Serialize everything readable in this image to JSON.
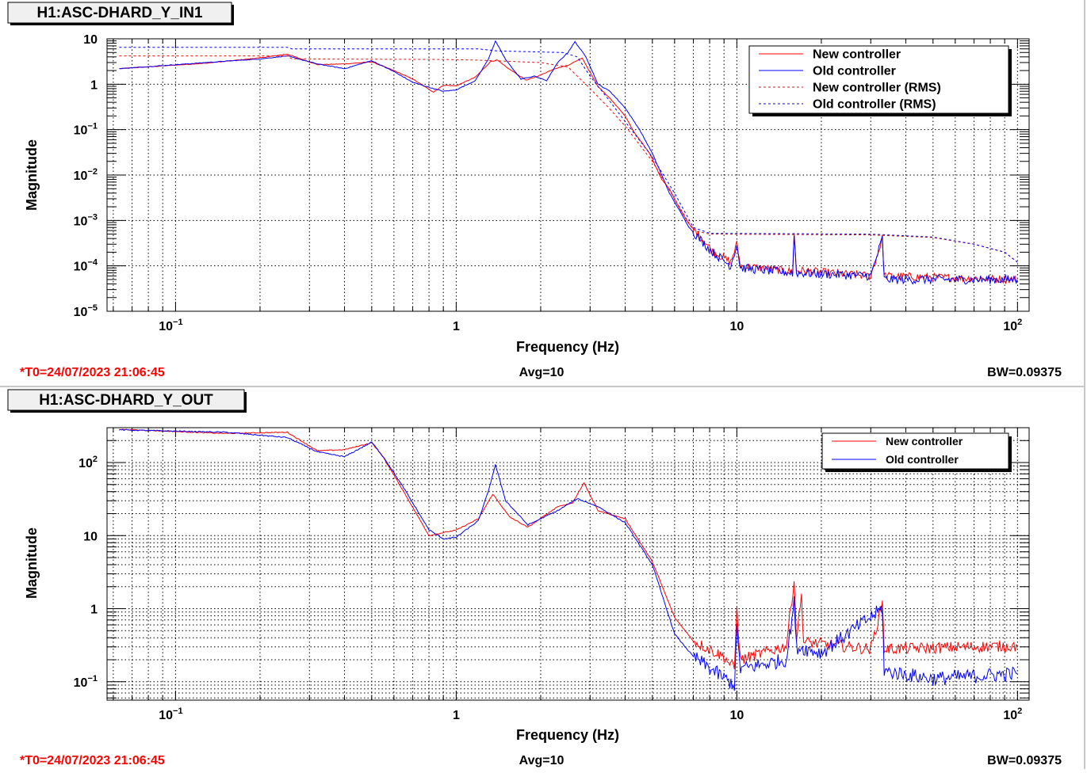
{
  "footer_info": {
    "t0": "*T0=24/07/2023 21:06:45",
    "avg": "Avg=10",
    "bw": "BW=0.09375",
    "t0_color": "#ff0000"
  },
  "chart_data": [
    {
      "type": "line",
      "title": "H1:ASC-DHARD_Y_IN1",
      "xlabel": "Frequency (Hz)",
      "ylabel": "Magnitude",
      "xscale": "log",
      "yscale": "log",
      "xlim": [
        0.057,
        110
      ],
      "ylim": [
        1e-05,
        10
      ],
      "grid": true,
      "legend_position": "top-right",
      "xticks": [
        {
          "base": "10",
          "exp": "−1",
          "v": 0.1
        },
        {
          "base": "1",
          "exp": "",
          "v": 1
        },
        {
          "base": "10",
          "exp": "",
          "v": 10
        },
        {
          "base": "10",
          "exp": "2",
          "v": 100
        }
      ],
      "yticks": [
        {
          "base": "10",
          "exp": "",
          "v": 10
        },
        {
          "base": "1",
          "exp": "",
          "v": 1
        },
        {
          "base": "10",
          "exp": "−1",
          "v": 0.1
        },
        {
          "base": "10",
          "exp": "−2",
          "v": 0.01
        },
        {
          "base": "10",
          "exp": "−3",
          "v": 0.001
        },
        {
          "base": "10",
          "exp": "−4",
          "v": 0.0001
        },
        {
          "base": "10",
          "exp": "−5",
          "v": 1e-05
        }
      ],
      "series": [
        {
          "name": "New controller",
          "color": "#ff0000",
          "dash": false,
          "noise_dex": 0.09,
          "points": [
            [
              0.063,
              2.2
            ],
            [
              0.128,
              2.9
            ],
            [
              0.2,
              3.8
            ],
            [
              0.25,
              4.6
            ],
            [
              0.32,
              2.7
            ],
            [
              0.4,
              2.8
            ],
            [
              0.5,
              3.1
            ],
            [
              0.6,
              2.0
            ],
            [
              0.7,
              1.3
            ],
            [
              0.83,
              0.67
            ],
            [
              0.9,
              0.95
            ],
            [
              1.0,
              0.92
            ],
            [
              1.17,
              1.43
            ],
            [
              1.33,
              3.2
            ],
            [
              1.4,
              3.4
            ],
            [
              1.52,
              2.3
            ],
            [
              1.78,
              1.22
            ],
            [
              2.0,
              1.6
            ],
            [
              2.24,
              2.2
            ],
            [
              2.5,
              2.6
            ],
            [
              2.81,
              3.8
            ],
            [
              3.2,
              0.89
            ],
            [
              3.53,
              0.49
            ],
            [
              4.0,
              0.2
            ],
            [
              4.3,
              0.088
            ],
            [
              4.89,
              0.03
            ],
            [
              5.4,
              0.008
            ],
            [
              5.75,
              0.005
            ],
            [
              6.2,
              0.002
            ],
            [
              6.76,
              0.00083
            ],
            [
              7.5,
              0.0004
            ],
            [
              8.2,
              0.00021
            ],
            [
              9.5,
              0.00012
            ],
            [
              10,
              0.0003
            ],
            [
              10.3,
              0.0001
            ],
            [
              15.8,
              7.5e-05
            ],
            [
              16,
              0.0005
            ],
            [
              16.3,
              8e-05
            ],
            [
              30,
              6e-05
            ],
            [
              33,
              0.0004
            ],
            [
              33.5,
              6e-05
            ],
            [
              100,
              5e-05
            ]
          ]
        },
        {
          "name": "Old controller",
          "color": "#0000ff",
          "dash": false,
          "noise_dex": 0.1,
          "points": [
            [
              0.063,
              2.2
            ],
            [
              0.128,
              3.0
            ],
            [
              0.2,
              3.6
            ],
            [
              0.25,
              4.2
            ],
            [
              0.32,
              2.8
            ],
            [
              0.4,
              2.2
            ],
            [
              0.5,
              3.3
            ],
            [
              0.6,
              1.9
            ],
            [
              0.7,
              1.1
            ],
            [
              0.83,
              0.8
            ],
            [
              0.9,
              0.7
            ],
            [
              1.0,
              0.75
            ],
            [
              1.17,
              1.2
            ],
            [
              1.3,
              3.5
            ],
            [
              1.38,
              8.9
            ],
            [
              1.5,
              3.5
            ],
            [
              1.7,
              1.3
            ],
            [
              1.9,
              1.5
            ],
            [
              2.1,
              1.2
            ],
            [
              2.3,
              3.0
            ],
            [
              2.5,
              5.0
            ],
            [
              2.65,
              8.6
            ],
            [
              2.9,
              4.0
            ],
            [
              3.2,
              1.0
            ],
            [
              3.53,
              0.7
            ],
            [
              4.0,
              0.3
            ],
            [
              4.5,
              0.1
            ],
            [
              5.0,
              0.03
            ],
            [
              5.4,
              0.01
            ],
            [
              5.75,
              0.004
            ],
            [
              6.2,
              0.0018
            ],
            [
              6.76,
              0.0007
            ],
            [
              7.5,
              0.00035
            ],
            [
              8.2,
              0.0002
            ],
            [
              9.5,
              0.0001
            ],
            [
              10,
              0.0003
            ],
            [
              10.3,
              9e-05
            ],
            [
              15.8,
              7e-05
            ],
            [
              16,
              0.0005
            ],
            [
              16.3,
              7e-05
            ],
            [
              30,
              6e-05
            ],
            [
              33,
              0.0004
            ],
            [
              33.5,
              5e-05
            ],
            [
              100,
              5e-05
            ]
          ]
        },
        {
          "name": "New controller (RMS)",
          "color": "#ff0000",
          "dash": true,
          "noise_dex": 0,
          "points": [
            [
              0.063,
              4.2
            ],
            [
              0.25,
              4.2
            ],
            [
              0.26,
              3.6
            ],
            [
              0.9,
              3.5
            ],
            [
              1.2,
              3.4
            ],
            [
              2.0,
              3.0
            ],
            [
              2.5,
              2.4
            ],
            [
              3.0,
              0.8
            ],
            [
              3.5,
              0.3
            ],
            [
              4.0,
              0.12
            ],
            [
              5.0,
              0.02
            ],
            [
              6.0,
              0.003
            ],
            [
              7.0,
              0.0006
            ],
            [
              8.0,
              0.0005
            ],
            [
              30,
              0.00048
            ],
            [
              50,
              0.00042
            ],
            [
              70,
              0.0003
            ],
            [
              90,
              0.0002
            ],
            [
              100,
              0.00012
            ]
          ]
        },
        {
          "name": "Old controller (RMS)",
          "color": "#0000ff",
          "dash": true,
          "noise_dex": 0,
          "points": [
            [
              0.063,
              6.5
            ],
            [
              0.25,
              6.5
            ],
            [
              0.26,
              6.0
            ],
            [
              1.2,
              6.0
            ],
            [
              1.4,
              5.4
            ],
            [
              2.4,
              5.0
            ],
            [
              2.7,
              4.0
            ],
            [
              3.0,
              1.5
            ],
            [
              3.5,
              0.45
            ],
            [
              4.0,
              0.15
            ],
            [
              5.0,
              0.025
            ],
            [
              6.0,
              0.004
            ],
            [
              7.0,
              0.0007
            ],
            [
              8.0,
              0.00052
            ],
            [
              30,
              0.0005
            ],
            [
              50,
              0.00043
            ],
            [
              70,
              0.0003
            ],
            [
              90,
              0.0002
            ],
            [
              100,
              0.00012
            ]
          ]
        }
      ]
    },
    {
      "type": "line",
      "title": "H1:ASC-DHARD_Y_OUT",
      "xlabel": "Frequency (Hz)",
      "ylabel": "Magnitude",
      "xscale": "log",
      "yscale": "log",
      "xlim": [
        0.057,
        110
      ],
      "ylim": [
        0.056,
        300
      ],
      "grid": true,
      "legend_position": "top-right",
      "xticks": [
        {
          "base": "10",
          "exp": "−1",
          "v": 0.1
        },
        {
          "base": "1",
          "exp": "",
          "v": 1
        },
        {
          "base": "10",
          "exp": "",
          "v": 10
        },
        {
          "base": "10",
          "exp": "2",
          "v": 100
        }
      ],
      "yticks": [
        {
          "base": "10",
          "exp": "2",
          "v": 100
        },
        {
          "base": "10",
          "exp": "",
          "v": 10
        },
        {
          "base": "1",
          "exp": "",
          "v": 1
        },
        {
          "base": "10",
          "exp": "−1",
          "v": 0.1
        }
      ],
      "series": [
        {
          "name": "New controller",
          "color": "#ff0000",
          "dash": false,
          "noise_dex": 0.08,
          "points": [
            [
              0.063,
              285
            ],
            [
              0.15,
              250
            ],
            [
              0.25,
              260
            ],
            [
              0.32,
              145
            ],
            [
              0.4,
              150
            ],
            [
              0.5,
              187
            ],
            [
              0.55,
              118
            ],
            [
              0.65,
              40
            ],
            [
              0.8,
              10
            ],
            [
              0.9,
              11
            ],
            [
              1.0,
              11.9
            ],
            [
              1.2,
              17
            ],
            [
              1.35,
              37
            ],
            [
              1.55,
              18
            ],
            [
              1.8,
              13
            ],
            [
              2.3,
              25
            ],
            [
              2.6,
              28
            ],
            [
              2.85,
              53
            ],
            [
              3.2,
              22
            ],
            [
              4.0,
              17
            ],
            [
              5.0,
              4.4
            ],
            [
              6.0,
              0.76
            ],
            [
              7.0,
              0.36
            ],
            [
              9.0,
              0.22
            ],
            [
              9.8,
              0.15
            ],
            [
              10,
              1.0
            ],
            [
              10.3,
              0.2
            ],
            [
              15,
              0.31
            ],
            [
              16,
              2.5
            ],
            [
              16.3,
              0.4
            ],
            [
              17,
              1.5
            ],
            [
              17.3,
              0.35
            ],
            [
              30,
              0.28
            ],
            [
              33,
              1.2
            ],
            [
              33.5,
              0.28
            ],
            [
              100,
              0.31
            ]
          ]
        },
        {
          "name": "Old controller",
          "color": "#0000ff",
          "dash": false,
          "noise_dex": 0.1,
          "points": [
            [
              0.063,
              280
            ],
            [
              0.15,
              260
            ],
            [
              0.25,
              220
            ],
            [
              0.32,
              140
            ],
            [
              0.4,
              120
            ],
            [
              0.5,
              190
            ],
            [
              0.55,
              120
            ],
            [
              0.65,
              45
            ],
            [
              0.8,
              12
            ],
            [
              0.9,
              9
            ],
            [
              1.0,
              9.5
            ],
            [
              1.2,
              16
            ],
            [
              1.3,
              40
            ],
            [
              1.38,
              93
            ],
            [
              1.5,
              30
            ],
            [
              1.8,
              14
            ],
            [
              2.3,
              22
            ],
            [
              2.7,
              32
            ],
            [
              3.2,
              25
            ],
            [
              4.0,
              15
            ],
            [
              5.0,
              4.0
            ],
            [
              6.0,
              0.45
            ],
            [
              7.0,
              0.22
            ],
            [
              8.5,
              0.13
            ],
            [
              9.8,
              0.09
            ],
            [
              10,
              0.5
            ],
            [
              10.3,
              0.15
            ],
            [
              15,
              0.2
            ],
            [
              16,
              1.2
            ],
            [
              16.3,
              0.3
            ],
            [
              20,
              0.25
            ],
            [
              33,
              1.0
            ],
            [
              33.5,
              0.14
            ],
            [
              50,
              0.11
            ],
            [
              100,
              0.13
            ]
          ]
        }
      ]
    }
  ]
}
